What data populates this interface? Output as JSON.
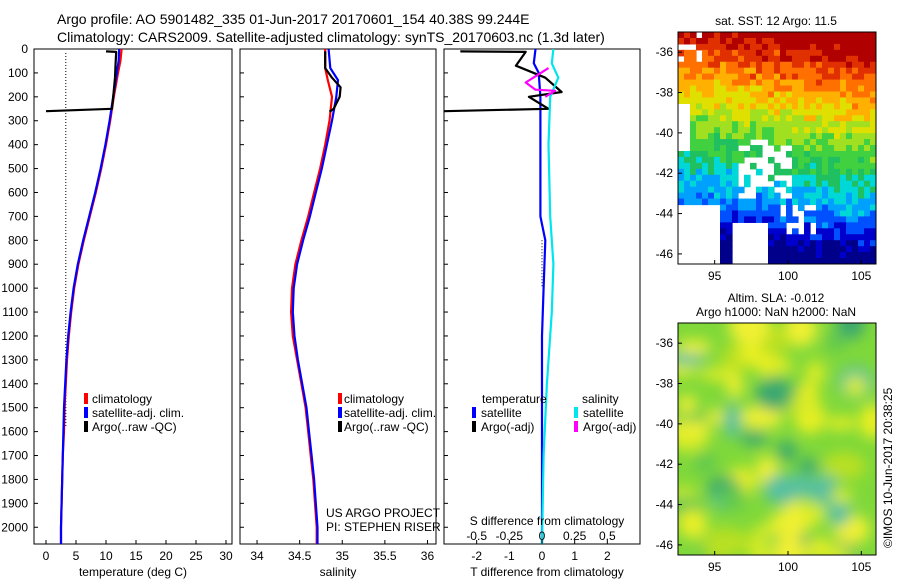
{
  "header": {
    "line1": "Argo profile: AO 5901482_335 01-Jun-2017 20170601_154 40.38S 99.244E",
    "line2": "Climatology: CARS2009. Satellite-adjusted climatology: synTS_20170603.nc (1.3d later)"
  },
  "credit": {
    "project": "US ARGO PROJECT",
    "pi": "PI: STEPHEN RISER",
    "imos": "©IMOS 10-Jun-2017 20:38:25"
  },
  "colors": {
    "climatology": "#ff0000",
    "satellite": "#0000ff",
    "argo": "#000000",
    "salinity_satellite": "#00e5ee",
    "salinity_argo": "#ff00ff"
  },
  "legends": {
    "climatology": "climatology",
    "satellite_adj": "satellite-adj. clim.",
    "argo_raw": "Argo(..raw -QC)",
    "diff_temperature_head": "temperature",
    "diff_salinity_head": "salinity",
    "satellite": "satellite",
    "argo_adj": "Argo(-adj)"
  },
  "chart_data": [
    {
      "id": "temperature",
      "type": "line",
      "xlabel": "temperature (deg C)",
      "ylabel": "depth",
      "xlim": [
        -2,
        31
      ],
      "ylim": [
        2070,
        0
      ],
      "xticks": [
        0,
        5,
        10,
        15,
        20,
        25,
        30
      ],
      "yticks": [
        0,
        100,
        200,
        300,
        400,
        500,
        600,
        700,
        800,
        900,
        1000,
        1100,
        1200,
        1300,
        1400,
        1500,
        1600,
        1700,
        1800,
        1900,
        2000
      ],
      "series": [
        {
          "name": "climatology",
          "color": "#ff0000",
          "points": [
            [
              12.6,
              0
            ],
            [
              12.4,
              50
            ],
            [
              12.0,
              100
            ],
            [
              11.3,
              200
            ],
            [
              10.7,
              300
            ],
            [
              10.0,
              400
            ],
            [
              9.2,
              500
            ],
            [
              8.3,
              600
            ],
            [
              7.3,
              700
            ],
            [
              6.3,
              800
            ],
            [
              5.4,
              900
            ],
            [
              4.7,
              1000
            ],
            [
              4.2,
              1100
            ],
            [
              3.8,
              1200
            ],
            [
              3.5,
              1300
            ],
            [
              3.3,
              1400
            ],
            [
              3.1,
              1500
            ],
            [
              3.0,
              1600
            ],
            [
              2.8,
              1700
            ],
            [
              2.7,
              1800
            ],
            [
              2.6,
              1900
            ],
            [
              2.5,
              2000
            ],
            [
              2.5,
              2070
            ]
          ]
        },
        {
          "name": "satellite-adj. clim.",
          "color": "#0000ff",
          "points": [
            [
              12.2,
              0
            ],
            [
              12.1,
              50
            ],
            [
              11.8,
              100
            ],
            [
              11.2,
              200
            ],
            [
              10.6,
              300
            ],
            [
              9.9,
              400
            ],
            [
              9.1,
              500
            ],
            [
              8.2,
              600
            ],
            [
              7.2,
              700
            ],
            [
              6.2,
              800
            ],
            [
              5.3,
              900
            ],
            [
              4.6,
              1000
            ],
            [
              4.1,
              1100
            ],
            [
              3.7,
              1200
            ],
            [
              3.4,
              1300
            ],
            [
              3.2,
              1400
            ],
            [
              3.0,
              1500
            ],
            [
              2.9,
              1600
            ],
            [
              2.8,
              1700
            ],
            [
              2.7,
              1800
            ],
            [
              2.6,
              1900
            ],
            [
              2.5,
              2000
            ],
            [
              2.5,
              2070
            ]
          ]
        },
        {
          "name": "Argo(..raw -QC)",
          "color": "#000000",
          "points": [
            [
              10.0,
              10
            ],
            [
              11.7,
              12
            ],
            [
              11.6,
              60
            ],
            [
              11.5,
              120
            ],
            [
              11.2,
              200
            ],
            [
              11.0,
              250
            ],
            [
              0.0,
              260
            ]
          ]
        }
      ]
    },
    {
      "id": "salinity",
      "type": "line",
      "xlabel": "salinity",
      "ylim": [
        2070,
        0
      ],
      "xlim": [
        33.8,
        36.1
      ],
      "xticks": [
        34,
        34.5,
        35,
        35.5,
        36
      ],
      "series": [
        {
          "name": "climatology",
          "color": "#ff0000",
          "points": [
            [
              34.8,
              0
            ],
            [
              34.8,
              80
            ],
            [
              34.83,
              130
            ],
            [
              34.88,
              200
            ],
            [
              34.85,
              300
            ],
            [
              34.8,
              400
            ],
            [
              34.74,
              500
            ],
            [
              34.67,
              600
            ],
            [
              34.6,
              700
            ],
            [
              34.52,
              800
            ],
            [
              34.45,
              900
            ],
            [
              34.41,
              1000
            ],
            [
              34.4,
              1100
            ],
            [
              34.42,
              1200
            ],
            [
              34.47,
              1300
            ],
            [
              34.52,
              1400
            ],
            [
              34.57,
              1500
            ],
            [
              34.6,
              1600
            ],
            [
              34.63,
              1700
            ],
            [
              34.66,
              1800
            ],
            [
              34.68,
              1900
            ],
            [
              34.7,
              2000
            ],
            [
              34.7,
              2070
            ]
          ]
        },
        {
          "name": "satellite-adj. clim.",
          "color": "#0000ff",
          "points": [
            [
              34.84,
              0
            ],
            [
              34.86,
              80
            ],
            [
              34.95,
              130
            ],
            [
              34.93,
              200
            ],
            [
              34.88,
              300
            ],
            [
              34.82,
              400
            ],
            [
              34.76,
              500
            ],
            [
              34.69,
              600
            ],
            [
              34.62,
              700
            ],
            [
              34.54,
              800
            ],
            [
              34.47,
              900
            ],
            [
              34.43,
              1000
            ],
            [
              34.42,
              1100
            ],
            [
              34.44,
              1200
            ],
            [
              34.48,
              1300
            ],
            [
              34.53,
              1400
            ],
            [
              34.58,
              1500
            ],
            [
              34.61,
              1600
            ],
            [
              34.64,
              1700
            ],
            [
              34.67,
              1800
            ],
            [
              34.69,
              1900
            ],
            [
              34.71,
              2000
            ],
            [
              34.71,
              2070
            ]
          ]
        },
        {
          "name": "Argo(..raw -QC)",
          "color": "#000000",
          "points": [
            [
              34.8,
              10
            ],
            [
              34.8,
              80
            ],
            [
              34.88,
              120
            ],
            [
              34.98,
              160
            ],
            [
              34.97,
              200
            ],
            [
              34.9,
              250
            ],
            [
              34.85,
              262
            ]
          ]
        }
      ]
    },
    {
      "id": "difference",
      "type": "line",
      "xlabel": "T difference from climatology",
      "x2label": "S difference from climatology",
      "xlim": [
        -3,
        3
      ],
      "ylim": [
        2070,
        0
      ],
      "xticks": [
        -2,
        -1,
        0,
        1,
        2
      ],
      "x2ticks": [
        "-0.5",
        "-0.25",
        "0",
        "0.25",
        "0.5"
      ],
      "series": [
        {
          "name": "temperature satellite",
          "color": "#0000ff",
          "points": [
            [
              -0.2,
              0
            ],
            [
              -0.25,
              60
            ],
            [
              -0.1,
              100
            ],
            [
              -0.05,
              200
            ],
            [
              -0.05,
              400
            ],
            [
              -0.05,
              700
            ],
            [
              0.1,
              800
            ],
            [
              0.05,
              1000
            ],
            [
              0,
              1200
            ],
            [
              0,
              2070
            ]
          ]
        },
        {
          "name": "temperature Argo(-adj)",
          "color": "#000000",
          "points": [
            [
              -2.5,
              10
            ],
            [
              -0.5,
              12
            ],
            [
              -0.8,
              70
            ],
            [
              0.1,
              120
            ],
            [
              0.6,
              180
            ],
            [
              -0.4,
              200
            ],
            [
              0.2,
              250
            ],
            [
              -3,
              260
            ]
          ]
        },
        {
          "name": "salinity satellite",
          "color": "#00e5ee",
          "points": [
            [
              0.35,
              0
            ],
            [
              0.3,
              60
            ],
            [
              0.5,
              120
            ],
            [
              0.25,
              200
            ],
            [
              0.2,
              400
            ],
            [
              0.25,
              700
            ],
            [
              0.35,
              900
            ],
            [
              0.3,
              1100
            ],
            [
              0.15,
              1400
            ],
            [
              0.05,
              1700
            ],
            [
              0,
              2070
            ]
          ]
        },
        {
          "name": "salinity Argo(-adj)",
          "color": "#ff00ff",
          "points": [
            [
              0.2,
              80
            ],
            [
              -0.5,
              140
            ],
            [
              -0.2,
              170
            ],
            [
              0.4,
              175
            ],
            [
              0.1,
              200
            ]
          ]
        }
      ]
    },
    {
      "id": "sst-map",
      "type": "heatmap",
      "title": "sat. SST: 12 Argo: 11.5",
      "xticks": [
        95,
        100,
        105
      ],
      "yticks": [
        -36,
        -38,
        -40,
        -42,
        -44,
        -46
      ],
      "xlim": [
        92.5,
        106
      ],
      "ylim": [
        -46.5,
        -35
      ]
    },
    {
      "id": "sla-map",
      "type": "heatmap",
      "title": "Altim. SLA: -0.012",
      "subtitle": "Argo h1000: NaN h2000: NaN",
      "xticks": [
        95,
        100,
        105
      ],
      "yticks": [
        -36,
        -38,
        -40,
        -42,
        -44,
        -46
      ],
      "xlim": [
        92.5,
        106
      ],
      "ylim": [
        -46.5,
        -35
      ]
    }
  ]
}
